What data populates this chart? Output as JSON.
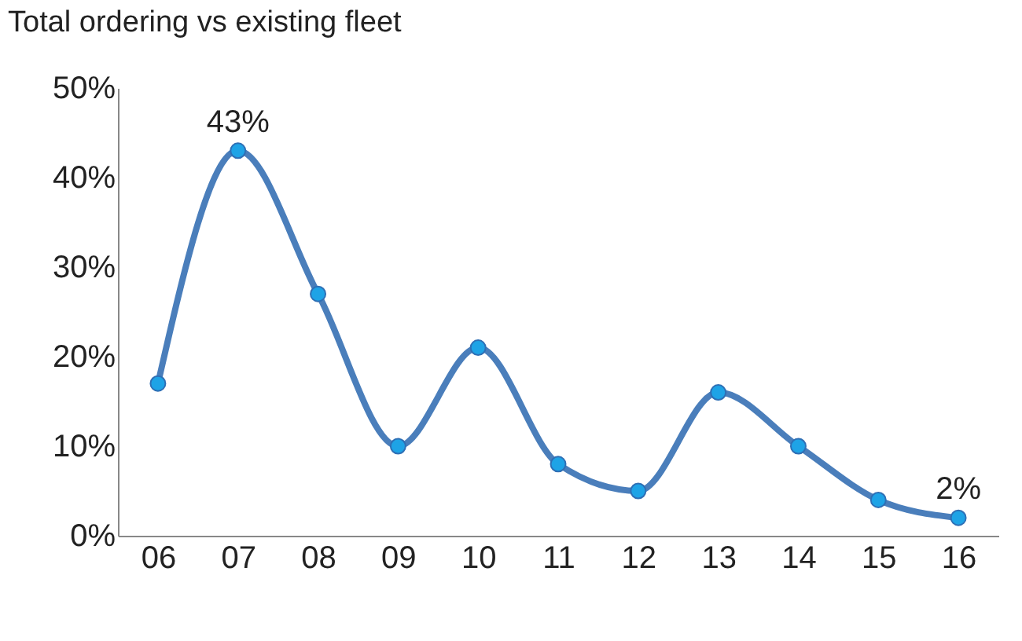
{
  "chart_data": {
    "type": "line",
    "title": "Total ordering vs\nexisting fleet",
    "categories": [
      "06",
      "07",
      "08",
      "09",
      "10",
      "11",
      "12",
      "13",
      "14",
      "15",
      "16"
    ],
    "series": [
      {
        "color": "#4a7ebb",
        "values": [
          17,
          43,
          27,
          10,
          21,
          8,
          5,
          16,
          10,
          4,
          2
        ],
        "value_labels": [
          null,
          "43%",
          null,
          null,
          null,
          null,
          null,
          null,
          null,
          null,
          "2%"
        ]
      }
    ],
    "ylim": [
      0,
      50
    ],
    "yticks": [
      {
        "value": 0,
        "label": "0%"
      },
      {
        "value": 10,
        "label": "10%"
      },
      {
        "value": 20,
        "label": "20%"
      },
      {
        "value": 30,
        "label": "30%"
      },
      {
        "value": 40,
        "label": "40%"
      },
      {
        "value": 50,
        "label": "50%"
      }
    ],
    "grid": false,
    "legend": false,
    "marker": "circle",
    "line_style": "solid"
  }
}
